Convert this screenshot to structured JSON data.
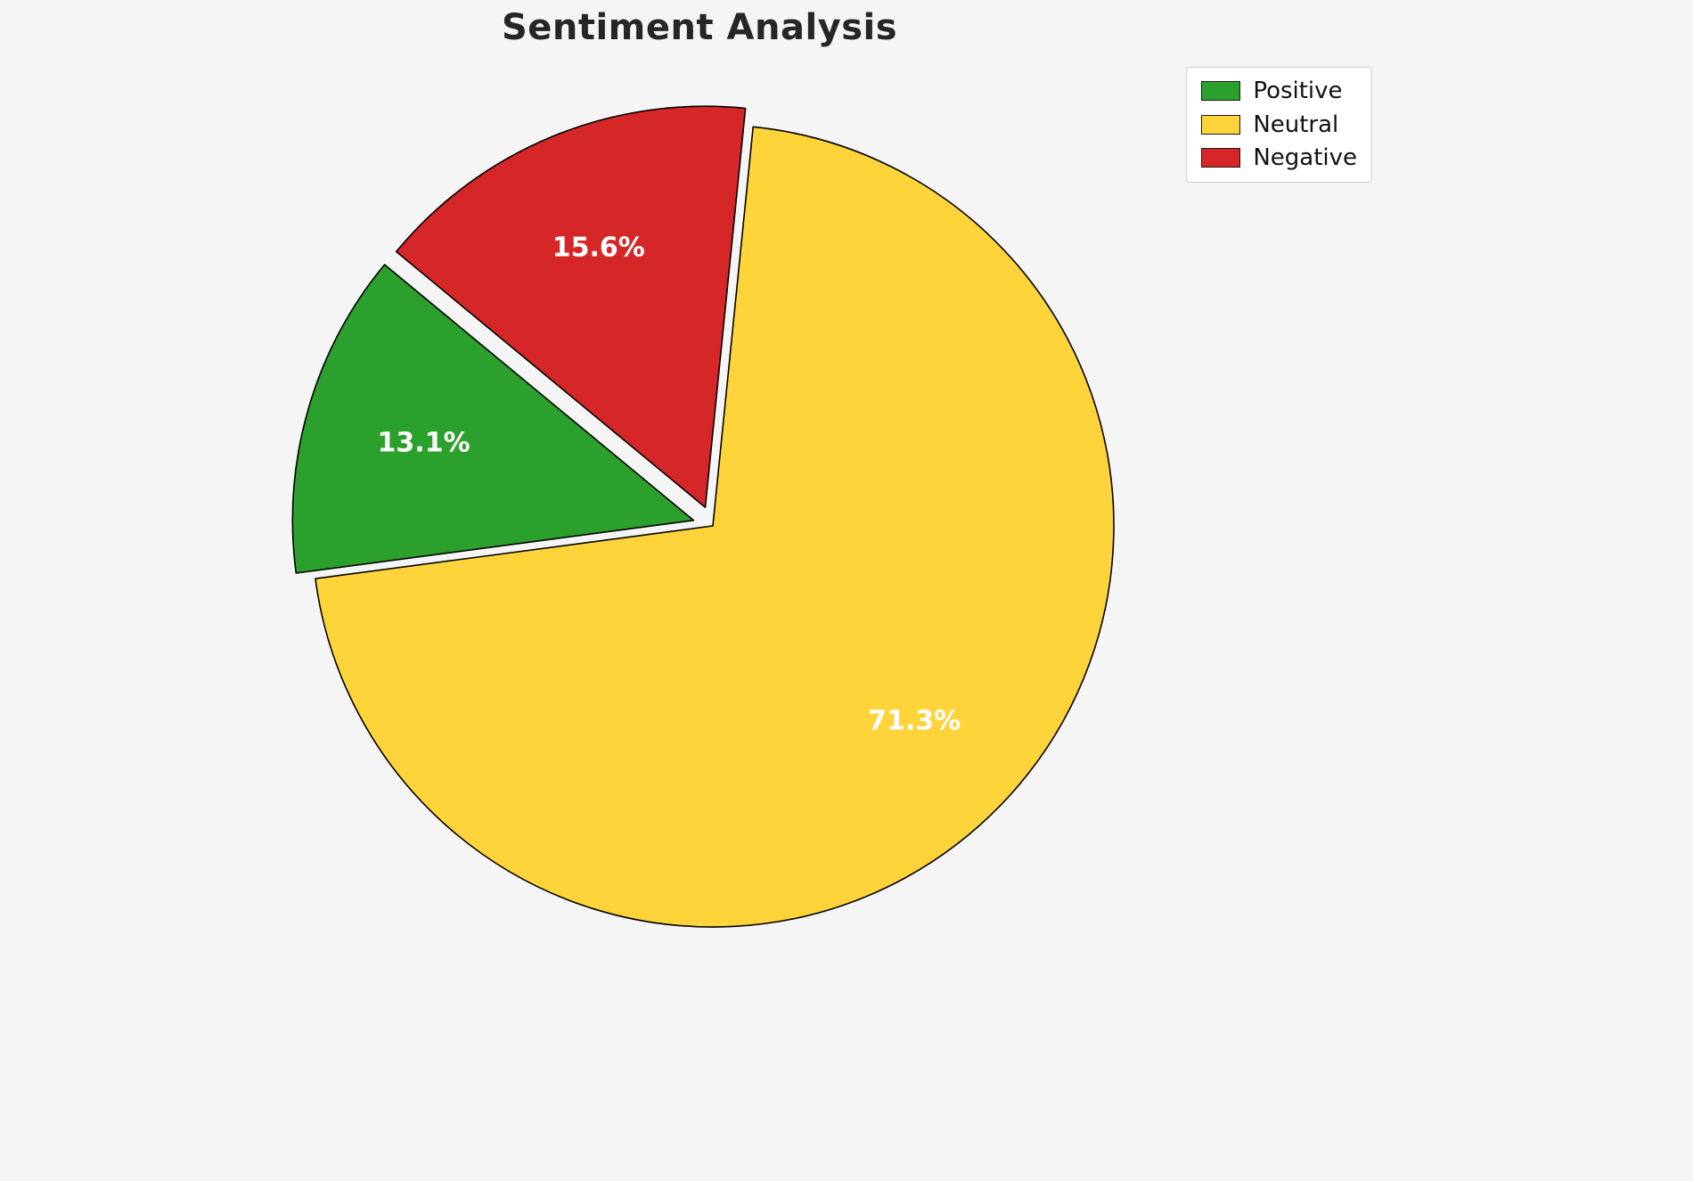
{
  "page": {
    "background": "#f5f5f5"
  },
  "chart_data": {
    "type": "pie",
    "title": "Sentiment Analysis",
    "labels": [
      "Positive",
      "Neutral",
      "Negative"
    ],
    "values": [
      13.1,
      71.3,
      15.6
    ],
    "pct_labels": [
      "13.1%",
      "71.3%",
      "15.6%"
    ],
    "colors": [
      "#2CA02C",
      "#FFD43B",
      "#D62728"
    ],
    "edge_color": "#000000",
    "pct_label_color": "#FFFFFF",
    "legend": {
      "position": "upper right",
      "entries": [
        "Positive",
        "Neutral",
        "Negative"
      ]
    },
    "start_angle": 140.4,
    "direction": "counterclockwise",
    "explode": [
      0.05,
      0,
      0.05
    ],
    "pct_distance": 0.7
  }
}
